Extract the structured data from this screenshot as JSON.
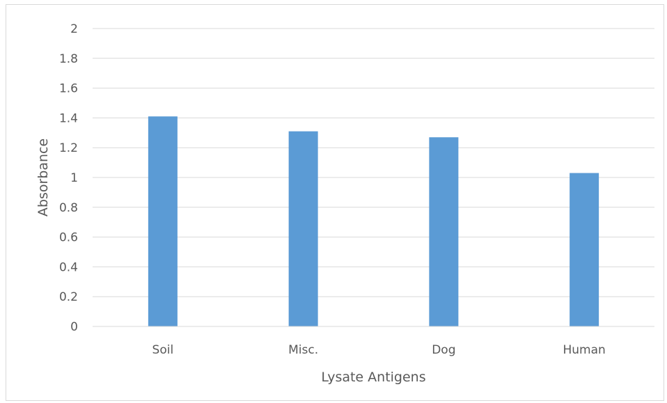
{
  "chart_data": {
    "type": "bar",
    "categories": [
      "Soil",
      "Misc.",
      "Dog",
      "Human"
    ],
    "values": [
      1.41,
      1.31,
      1.27,
      1.03
    ],
    "xlabel": "Lysate Antigens",
    "ylabel": "Absorbance",
    "ylim": [
      0,
      2
    ],
    "yticks": [
      "0",
      "0.2",
      "0.4",
      "0.6",
      "0.8",
      "1",
      "1.2",
      "1.4",
      "1.6",
      "1.8",
      "2"
    ],
    "grid": true,
    "legend": "none",
    "bar_color": "#5b9bd5",
    "grid_color": "#d9d9d9"
  }
}
